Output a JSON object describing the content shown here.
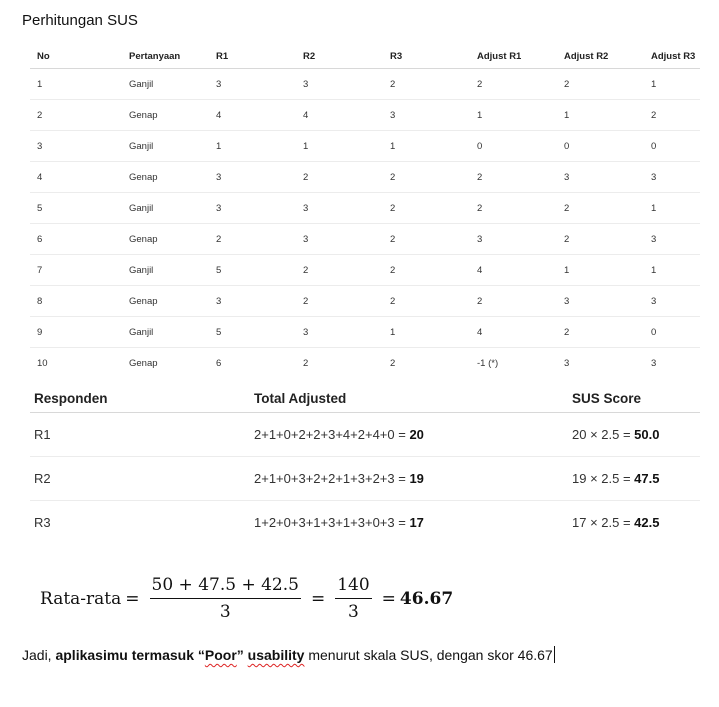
{
  "title": "Perhitungan SUS",
  "calc_table": {
    "headers": [
      "No",
      "Pertanyaan",
      "R1",
      "R2",
      "R3",
      "Adjust R1",
      "Adjust R2",
      "Adjust R3"
    ],
    "rows": [
      [
        "1",
        "Ganjil",
        "3",
        "3",
        "2",
        "2",
        "2",
        "1"
      ],
      [
        "2",
        "Genap",
        "4",
        "4",
        "3",
        "1",
        "1",
        "2"
      ],
      [
        "3",
        "Ganjil",
        "1",
        "1",
        "1",
        "0",
        "0",
        "0"
      ],
      [
        "4",
        "Genap",
        "3",
        "2",
        "2",
        "2",
        "3",
        "3"
      ],
      [
        "5",
        "Ganjil",
        "3",
        "3",
        "2",
        "2",
        "2",
        "1"
      ],
      [
        "6",
        "Genap",
        "2",
        "3",
        "2",
        "3",
        "2",
        "3"
      ],
      [
        "7",
        "Ganjil",
        "5",
        "2",
        "2",
        "4",
        "1",
        "1"
      ],
      [
        "8",
        "Genap",
        "3",
        "2",
        "2",
        "2",
        "3",
        "3"
      ],
      [
        "9",
        "Ganjil",
        "5",
        "3",
        "1",
        "4",
        "2",
        "0"
      ],
      [
        "10",
        "Genap",
        "6",
        "2",
        "2",
        "-1 (*)",
        "3",
        "3"
      ]
    ]
  },
  "score_table": {
    "headers": [
      "Responden",
      "Total Adjusted",
      "SUS Score"
    ],
    "rows": [
      {
        "resp": "R1",
        "total_expr": "2+1+0+2+2+3+4+2+4+0 = ",
        "total": "20",
        "score_expr": "20 × 2.5 = ",
        "score": "50.0"
      },
      {
        "resp": "R2",
        "total_expr": "2+1+0+3+2+2+1+3+2+3 = ",
        "total": "19",
        "score_expr": "19 × 2.5 = ",
        "score": "47.5"
      },
      {
        "resp": "R3",
        "total_expr": "1+2+0+3+1+3+1+3+0+3 = ",
        "total": "17",
        "score_expr": "17 × 2.5 = ",
        "score": "42.5"
      }
    ]
  },
  "formula": {
    "label": "Rata-rata",
    "eq": "=",
    "frac1_num": "50 + 47.5 + 42.5",
    "frac1_den": "3",
    "frac2_num": "140",
    "frac2_den": "3",
    "result": "46.67"
  },
  "conclusion": {
    "prefix": "Jadi, ",
    "bold1": "aplikasimu termasuk “",
    "poor": "Poor",
    "bold2": "” ",
    "usability": "usability",
    "rest": " menurut skala SUS, dengan skor 46.67"
  }
}
